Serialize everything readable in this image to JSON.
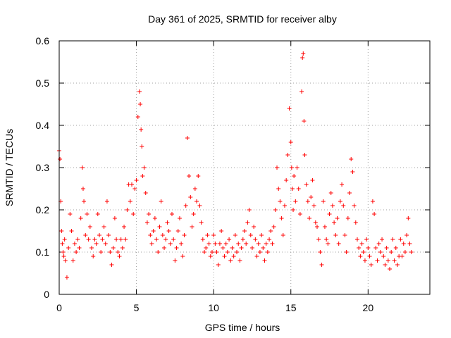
{
  "chart_data": {
    "type": "scatter",
    "title": "Day 361 of 2025, SRMTID for receiver alby",
    "xlabel": "GPS time / hours",
    "ylabel": "SRMTID / TECUs",
    "xlim": [
      0,
      24
    ],
    "ylim": [
      0,
      0.6
    ],
    "xticks": [
      0,
      5,
      10,
      15,
      20
    ],
    "xtick_labels": [
      "0",
      "5",
      "10",
      "15",
      "20"
    ],
    "yticks": [
      0,
      0.1,
      0.2,
      0.3,
      0.4,
      0.5,
      0.6
    ],
    "ytick_labels": [
      "0",
      "0.1",
      "0.2",
      "0.3",
      "0.4",
      "0.5",
      "0.6"
    ],
    "grid": true,
    "legend": "none",
    "marker": "plus",
    "color": "#ff0000",
    "series": [
      {
        "name": "SRMTID",
        "x": [
          0.0,
          0.05,
          0.1,
          0.15,
          0.2,
          0.25,
          0.3,
          0.35,
          0.4,
          0.5,
          0.6,
          0.7,
          0.8,
          0.9,
          1.0,
          1.1,
          1.2,
          1.3,
          1.4,
          1.5,
          1.55,
          1.6,
          1.7,
          1.8,
          1.9,
          2.0,
          2.1,
          2.2,
          2.3,
          2.4,
          2.5,
          2.6,
          2.7,
          2.8,
          2.9,
          3.0,
          3.1,
          3.2,
          3.3,
          3.4,
          3.5,
          3.6,
          3.7,
          3.8,
          3.9,
          4.0,
          4.1,
          4.2,
          4.3,
          4.4,
          4.5,
          4.6,
          4.7,
          4.8,
          4.9,
          5.0,
          5.1,
          5.2,
          5.25,
          5.3,
          5.35,
          5.4,
          5.5,
          5.6,
          5.7,
          5.8,
          5.9,
          6.0,
          6.1,
          6.2,
          6.3,
          6.4,
          6.5,
          6.6,
          6.7,
          6.8,
          6.9,
          7.0,
          7.1,
          7.2,
          7.3,
          7.4,
          7.5,
          7.6,
          7.7,
          7.8,
          7.9,
          8.0,
          8.1,
          8.2,
          8.3,
          8.4,
          8.5,
          8.6,
          8.7,
          8.8,
          8.9,
          9.0,
          9.1,
          9.2,
          9.3,
          9.4,
          9.5,
          9.6,
          9.7,
          9.8,
          9.9,
          10.0,
          10.1,
          10.2,
          10.3,
          10.4,
          10.5,
          10.6,
          10.7,
          10.8,
          10.9,
          11.0,
          11.1,
          11.2,
          11.3,
          11.4,
          11.5,
          11.6,
          11.7,
          11.8,
          11.9,
          12.0,
          12.1,
          12.2,
          12.3,
          12.4,
          12.5,
          12.6,
          12.7,
          12.8,
          12.9,
          13.0,
          13.1,
          13.2,
          13.3,
          13.4,
          13.5,
          13.6,
          13.7,
          13.8,
          13.9,
          14.0,
          14.1,
          14.2,
          14.3,
          14.4,
          14.5,
          14.6,
          14.7,
          14.8,
          14.9,
          15.0,
          15.05,
          15.1,
          15.15,
          15.2,
          15.3,
          15.4,
          15.5,
          15.6,
          15.7,
          15.75,
          15.8,
          15.85,
          15.9,
          16.0,
          16.1,
          16.2,
          16.3,
          16.4,
          16.5,
          16.6,
          16.7,
          16.8,
          16.9,
          17.0,
          17.1,
          17.2,
          17.3,
          17.4,
          17.5,
          17.6,
          17.7,
          17.8,
          17.9,
          18.0,
          18.1,
          18.2,
          18.3,
          18.4,
          18.5,
          18.6,
          18.7,
          18.8,
          18.9,
          19.0,
          19.1,
          19.2,
          19.3,
          19.4,
          19.5,
          19.6,
          19.7,
          19.8,
          19.9,
          20.0,
          20.1,
          20.2,
          20.3,
          20.4,
          20.5,
          20.6,
          20.7,
          20.8,
          20.9,
          21.0,
          21.1,
          21.2,
          21.3,
          21.4,
          21.5,
          21.6,
          21.7,
          21.8,
          21.9,
          22.0,
          22.1,
          22.2,
          22.3,
          22.4,
          22.5,
          22.6,
          22.7,
          22.8
        ],
        "y": [
          0.34,
          0.32,
          0.22,
          0.15,
          0.12,
          0.1,
          0.09,
          0.13,
          0.08,
          0.04,
          0.11,
          0.19,
          0.15,
          0.08,
          0.12,
          0.1,
          0.13,
          0.11,
          0.18,
          0.3,
          0.25,
          0.22,
          0.14,
          0.19,
          0.13,
          0.16,
          0.11,
          0.09,
          0.13,
          0.12,
          0.19,
          0.14,
          0.1,
          0.13,
          0.16,
          0.12,
          0.22,
          0.14,
          0.1,
          0.07,
          0.11,
          0.18,
          0.13,
          0.1,
          0.09,
          0.13,
          0.11,
          0.16,
          0.13,
          0.2,
          0.26,
          0.22,
          0.26,
          0.19,
          0.25,
          0.27,
          0.42,
          0.48,
          0.45,
          0.39,
          0.35,
          0.28,
          0.3,
          0.24,
          0.17,
          0.19,
          0.14,
          0.12,
          0.15,
          0.18,
          0.13,
          0.1,
          0.16,
          0.22,
          0.14,
          0.11,
          0.13,
          0.17,
          0.15,
          0.12,
          0.19,
          0.13,
          0.08,
          0.11,
          0.15,
          0.18,
          0.12,
          0.09,
          0.14,
          0.21,
          0.37,
          0.28,
          0.23,
          0.16,
          0.19,
          0.25,
          0.22,
          0.28,
          0.21,
          0.17,
          0.13,
          0.1,
          0.11,
          0.14,
          0.12,
          0.09,
          0.1,
          0.14,
          0.12,
          0.1,
          0.07,
          0.12,
          0.15,
          0.11,
          0.09,
          0.12,
          0.1,
          0.13,
          0.08,
          0.11,
          0.09,
          0.14,
          0.1,
          0.12,
          0.08,
          0.11,
          0.13,
          0.15,
          0.12,
          0.17,
          0.2,
          0.14,
          0.11,
          0.16,
          0.13,
          0.09,
          0.12,
          0.1,
          0.14,
          0.11,
          0.08,
          0.12,
          0.1,
          0.13,
          0.15,
          0.12,
          0.16,
          0.2,
          0.3,
          0.25,
          0.22,
          0.18,
          0.14,
          0.21,
          0.27,
          0.33,
          0.44,
          0.36,
          0.3,
          0.25,
          0.2,
          0.28,
          0.22,
          0.3,
          0.25,
          0.19,
          0.48,
          0.56,
          0.57,
          0.41,
          0.33,
          0.26,
          0.22,
          0.18,
          0.23,
          0.27,
          0.21,
          0.17,
          0.16,
          0.13,
          0.1,
          0.07,
          0.22,
          0.16,
          0.13,
          0.12,
          0.19,
          0.24,
          0.21,
          0.17,
          0.14,
          0.18,
          0.12,
          0.22,
          0.26,
          0.21,
          0.14,
          0.1,
          0.18,
          0.24,
          0.32,
          0.29,
          0.21,
          0.17,
          0.13,
          0.11,
          0.09,
          0.12,
          0.1,
          0.08,
          0.13,
          0.11,
          0.09,
          0.07,
          0.22,
          0.19,
          0.11,
          0.08,
          0.12,
          0.1,
          0.13,
          0.09,
          0.07,
          0.11,
          0.08,
          0.06,
          0.1,
          0.13,
          0.08,
          0.11,
          0.07,
          0.09,
          0.13,
          0.09,
          0.12,
          0.1,
          0.14,
          0.18,
          0.12,
          0.1
        ]
      }
    ]
  }
}
